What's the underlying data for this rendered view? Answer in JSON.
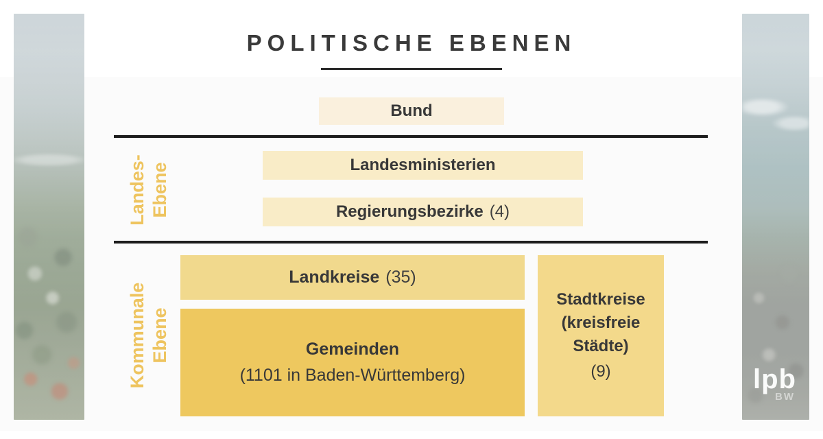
{
  "title": "POLITISCHE EBENEN",
  "levels": {
    "bund": {
      "label": "Bund"
    },
    "landes": {
      "side_label_line1": "Landes-",
      "side_label_line2": "Ebene",
      "ministerien": {
        "label": "Landesministerien"
      },
      "bezirke": {
        "label": "Regierungsbezirke",
        "count": "(4)"
      }
    },
    "kommunal": {
      "side_label_line1": "Kommunale",
      "side_label_line2": "Ebene",
      "landkreise": {
        "label": "Landkreise",
        "count": "(35)"
      },
      "gemeinden": {
        "label": "Gemeinden",
        "sub": "(1101 in Baden-Württemberg)"
      },
      "stadtkreise": {
        "line1": "Stadtkreise",
        "line2": "(kreisfreie",
        "line3": "Städte)",
        "count": "(9)"
      }
    }
  },
  "logo": {
    "main": "lpb",
    "sub": "BW"
  },
  "colors": {
    "accent_gold": "#eec45f",
    "box_cream": "#faf0dd",
    "box_light_yellow": "#f9ecc7",
    "box_mid_yellow": "#f1d98d",
    "box_deep_yellow": "#eec85f",
    "box_stadtkreise": "#f3d98b",
    "text_dark": "#383838",
    "line_black": "#1d1d1d"
  }
}
